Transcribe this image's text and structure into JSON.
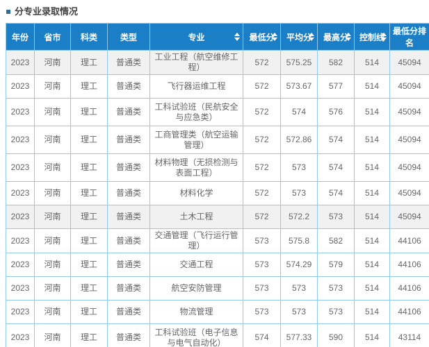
{
  "section": {
    "title": "分专业录取情况"
  },
  "table": {
    "columns": [
      {
        "key": "year",
        "label": "年份",
        "sortable": false
      },
      {
        "key": "province",
        "label": "省市",
        "sortable": false
      },
      {
        "key": "subject-category",
        "label": "科类",
        "sortable": false
      },
      {
        "key": "type",
        "label": "类型",
        "sortable": false
      },
      {
        "key": "major",
        "label": "专业",
        "sortable": true
      },
      {
        "key": "min-score",
        "label": "最低分",
        "sortable": true
      },
      {
        "key": "avg-score",
        "label": "平均分",
        "sortable": true
      },
      {
        "key": "max-score",
        "label": "最高分",
        "sortable": true
      },
      {
        "key": "control-line",
        "label": "控制线",
        "sortable": true
      },
      {
        "key": "min-score-rank",
        "label": "最低分排名",
        "sortable": false
      }
    ],
    "rows": [
      [
        "2023",
        "河南",
        "理工",
        "普通类",
        "工业工程（航空维修工程）",
        "572",
        "575.25",
        "582",
        "514",
        "45094"
      ],
      [
        "2023",
        "河南",
        "理工",
        "普通类",
        "飞行器运维工程",
        "572",
        "573.67",
        "577",
        "514",
        "45094"
      ],
      [
        "2023",
        "河南",
        "理工",
        "普通类",
        "工科试验班（民航安全与应急类）",
        "572",
        "574",
        "576",
        "514",
        "45094"
      ],
      [
        "2023",
        "河南",
        "理工",
        "普通类",
        "工商管理类（航空运输管理）",
        "572",
        "572.86",
        "574",
        "514",
        "45094"
      ],
      [
        "2023",
        "河南",
        "理工",
        "普通类",
        "材料物理（无损检测与表面工程）",
        "572",
        "573",
        "574",
        "514",
        "45094"
      ],
      [
        "2023",
        "河南",
        "理工",
        "普通类",
        "材料化学",
        "572",
        "573",
        "574",
        "514",
        "45094"
      ],
      [
        "2023",
        "河南",
        "理工",
        "普通类",
        "土木工程",
        "572",
        "572.2",
        "573",
        "514",
        "45094"
      ],
      [
        "2023",
        "河南",
        "理工",
        "普通类",
        "交通管理（飞行运行管理）",
        "573",
        "575.8",
        "582",
        "514",
        "44106"
      ],
      [
        "2023",
        "河南",
        "理工",
        "普通类",
        "交通工程",
        "573",
        "574.29",
        "579",
        "514",
        "44106"
      ],
      [
        "2023",
        "河南",
        "理工",
        "普通类",
        "航空安防管理",
        "573",
        "573",
        "573",
        "514",
        "44106"
      ],
      [
        "2023",
        "河南",
        "理工",
        "普通类",
        "物流管理",
        "573",
        "573",
        "573",
        "514",
        "44106"
      ],
      [
        "2023",
        "河南",
        "理工",
        "普通类",
        "工科试验班（电子信息与电气自动化）",
        "574",
        "577.33",
        "590",
        "514",
        "43114"
      ]
    ],
    "shaded_row_indexes": [
      0,
      6
    ],
    "partial_bottom_row": true
  },
  "colors": {
    "header_bg": "#1b7fc8",
    "header_text": "#ffffff",
    "border": "#8fc9ee",
    "cell_text": "#666666",
    "row_shaded": "#f1f1f1",
    "title_bullet": "#2e6da4"
  }
}
